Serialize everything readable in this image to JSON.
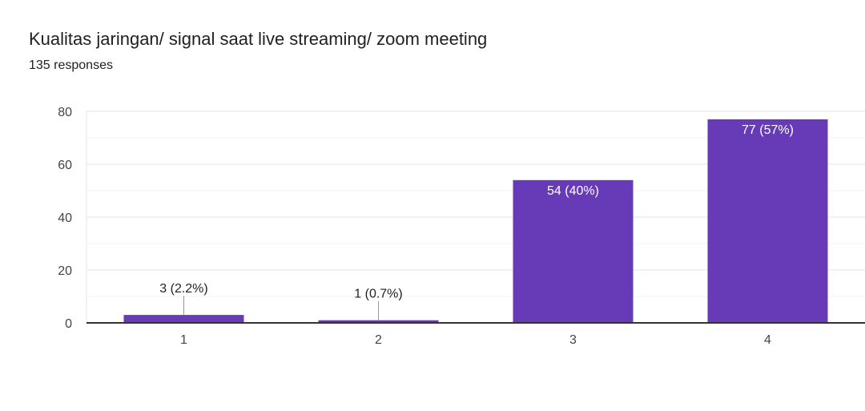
{
  "header": {
    "title": "Kualitas jaringan/ signal saat live streaming/ zoom meeting",
    "responses": "135 responses"
  },
  "chart_data": {
    "type": "bar",
    "title": "Kualitas jaringan/ signal saat live streaming/ zoom meeting",
    "categories": [
      "1",
      "2",
      "3",
      "4"
    ],
    "values": [
      3,
      1,
      54,
      77
    ],
    "data_labels": [
      "3 (2.2%)",
      "1 (0.7%)",
      "54 (40%)",
      "77 (57%)"
    ],
    "xlabel": "",
    "ylabel": "",
    "ylim": [
      0,
      80
    ],
    "yticks": [
      0,
      20,
      40,
      60,
      80
    ],
    "grid": true,
    "colors": {
      "bar": "#673ab7",
      "grid_major": "#e6e6e6",
      "grid_minor": "#f3f3f3",
      "axis": "#333333",
      "label_inside": "#ffffff",
      "label_outside": "#222222"
    }
  }
}
